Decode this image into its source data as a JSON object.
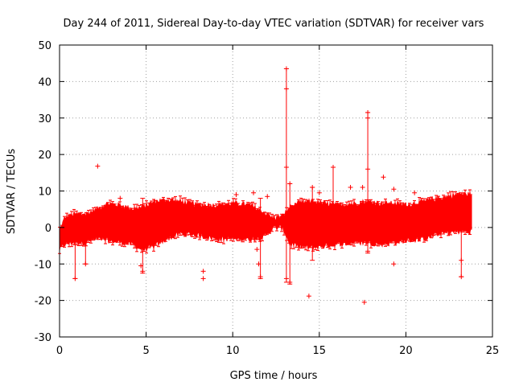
{
  "chart_data": {
    "type": "scatter",
    "title": "Day 244 of 2011, Sidereal Day-to-day VTEC variation (SDTVAR) for receiver vars",
    "xlabel": "GPS time / hours",
    "ylabel": "SDTVAR / TECUs",
    "xlim": [
      0,
      25
    ],
    "ylim": [
      -30,
      50
    ],
    "xticks": [
      0,
      5,
      10,
      15,
      20,
      25
    ],
    "yticks": [
      -30,
      -20,
      -10,
      0,
      10,
      20,
      30,
      40,
      50
    ],
    "grid": true,
    "series_color": "#ff0000",
    "band": {
      "description": "dense error-bar band of SDTVAR values",
      "x": [
        0.0,
        0.3,
        0.8,
        1.5,
        2.2,
        2.8,
        3.5,
        4.2,
        4.8,
        5.5,
        6.2,
        7.0,
        8.0,
        9.0,
        10.0,
        11.0,
        11.8,
        12.3,
        12.9,
        13.3,
        13.8,
        14.5,
        15.2,
        16.0,
        17.0,
        17.8,
        18.5,
        19.2,
        20.0,
        21.0,
        22.0,
        23.0,
        23.8
      ],
      "upper": [
        -1.0,
        2.5,
        3.5,
        3.5,
        5.0,
        6.5,
        6.0,
        5.0,
        5.5,
        7.0,
        7.5,
        7.0,
        6.0,
        6.0,
        6.5,
        6.0,
        4.0,
        2.5,
        3.0,
        5.5,
        6.5,
        7.0,
        6.5,
        6.0,
        6.5,
        7.0,
        6.5,
        6.5,
        6.0,
        7.0,
        8.0,
        9.0,
        9.0
      ],
      "lower": [
        -6.0,
        -4.5,
        -4.0,
        -4.0,
        -3.0,
        -3.5,
        -4.0,
        -4.5,
        -6.0,
        -5.0,
        -3.0,
        -1.5,
        -2.0,
        -3.0,
        -3.0,
        -3.0,
        -2.5,
        0.0,
        0.0,
        -4.5,
        -5.0,
        -5.5,
        -5.0,
        -4.5,
        -4.0,
        -4.0,
        -4.5,
        -4.0,
        -3.5,
        -3.0,
        -1.5,
        -1.0,
        -1.0
      ]
    },
    "outliers": [
      {
        "x": 2.2,
        "y": 16.8
      },
      {
        "x": 3.5,
        "y": 8.0
      },
      {
        "x": 0.9,
        "y": -14.0
      },
      {
        "x": 1.5,
        "y": -10.0
      },
      {
        "x": 4.8,
        "y": -12.0
      },
      {
        "x": 4.7,
        "y": -10.5
      },
      {
        "x": 8.3,
        "y": -12.0
      },
      {
        "x": 8.3,
        "y": -14.0
      },
      {
        "x": 10.2,
        "y": 9.0
      },
      {
        "x": 11.2,
        "y": 9.5
      },
      {
        "x": 11.5,
        "y": -10.0
      },
      {
        "x": 11.6,
        "y": -13.5
      },
      {
        "x": 11.4,
        "y": -6.0
      },
      {
        "x": 12.0,
        "y": 8.5
      },
      {
        "x": 13.1,
        "y": 43.5
      },
      {
        "x": 13.1,
        "y": 38.0
      },
      {
        "x": 13.1,
        "y": 16.5
      },
      {
        "x": 13.1,
        "y": -14.0
      },
      {
        "x": 13.3,
        "y": 12.0
      },
      {
        "x": 13.3,
        "y": -15.0
      },
      {
        "x": 14.4,
        "y": -18.8
      },
      {
        "x": 14.6,
        "y": 11.0
      },
      {
        "x": 15.0,
        "y": 9.5
      },
      {
        "x": 15.8,
        "y": 16.5
      },
      {
        "x": 16.8,
        "y": 11.0
      },
      {
        "x": 17.5,
        "y": 11.0
      },
      {
        "x": 17.6,
        "y": -20.5
      },
      {
        "x": 17.8,
        "y": 31.5
      },
      {
        "x": 17.8,
        "y": 30.0
      },
      {
        "x": 17.8,
        "y": 16.0
      },
      {
        "x": 17.8,
        "y": -6.5
      },
      {
        "x": 18.7,
        "y": 13.8
      },
      {
        "x": 19.3,
        "y": 10.5
      },
      {
        "x": 19.3,
        "y": -10.0
      },
      {
        "x": 20.5,
        "y": 9.5
      },
      {
        "x": 23.2,
        "y": -13.5
      },
      {
        "x": 23.2,
        "y": -9.0
      }
    ],
    "spikes": [
      {
        "x": 13.1,
        "from": -15.0,
        "to": 43.5
      },
      {
        "x": 13.3,
        "from": -15.5,
        "to": 12.0
      },
      {
        "x": 17.8,
        "from": -7.0,
        "to": 31.5
      },
      {
        "x": 11.6,
        "from": -14.0,
        "to": 8.0
      },
      {
        "x": 4.8,
        "from": -12.5,
        "to": 8.0
      },
      {
        "x": 23.2,
        "from": -13.5,
        "to": 9.5
      },
      {
        "x": 15.8,
        "from": -5.0,
        "to": 16.5
      },
      {
        "x": 14.6,
        "from": -9.0,
        "to": 11.0
      },
      {
        "x": 0.9,
        "from": -14.0,
        "to": 3.0
      },
      {
        "x": 1.5,
        "from": -10.0,
        "to": 3.0
      }
    ]
  }
}
